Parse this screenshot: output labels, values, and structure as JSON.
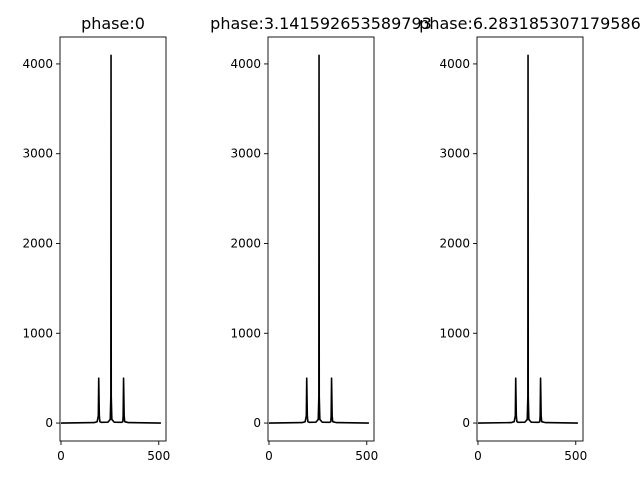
{
  "chart_data": [
    {
      "type": "line",
      "title": "phase:0",
      "xlabel": "",
      "ylabel": "",
      "xlim": [
        -5,
        537
      ],
      "ylim": [
        -200,
        4300
      ],
      "xticks": [
        0,
        500
      ],
      "yticks": [
        0,
        1000,
        2000,
        3000,
        4000
      ],
      "grid": false,
      "line_color": "#000000",
      "series": [
        {
          "x": [
            0,
            170,
            185,
            191,
            193,
            196,
            199,
            205,
            240,
            252,
            255,
            256,
            257,
            260,
            272,
            310,
            316,
            318,
            320,
            323,
            326,
            345,
            511
          ],
          "y": [
            0,
            5,
            15,
            80,
            500,
            80,
            15,
            8,
            10,
            40,
            300,
            4096,
            300,
            40,
            10,
            8,
            15,
            80,
            500,
            80,
            15,
            5,
            0
          ]
        }
      ]
    },
    {
      "type": "line",
      "title": "phase:3.141592653589793",
      "xlabel": "",
      "ylabel": "",
      "xlim": [
        -5,
        537
      ],
      "ylim": [
        -200,
        4300
      ],
      "xticks": [
        0,
        500
      ],
      "yticks": [
        0,
        1000,
        2000,
        3000,
        4000
      ],
      "grid": false,
      "line_color": "#000000",
      "series": [
        {
          "x": [
            0,
            170,
            185,
            191,
            193,
            196,
            199,
            205,
            240,
            252,
            255,
            256,
            257,
            260,
            272,
            310,
            316,
            318,
            320,
            323,
            326,
            345,
            511
          ],
          "y": [
            0,
            5,
            15,
            80,
            500,
            80,
            15,
            8,
            10,
            40,
            300,
            4096,
            300,
            40,
            10,
            8,
            15,
            80,
            500,
            80,
            15,
            5,
            0
          ]
        }
      ]
    },
    {
      "type": "line",
      "title": "phase:6.283185307179586",
      "xlabel": "",
      "ylabel": "",
      "xlim": [
        -5,
        537
      ],
      "ylim": [
        -200,
        4300
      ],
      "xticks": [
        0,
        500
      ],
      "yticks": [
        0,
        1000,
        2000,
        3000,
        4000
      ],
      "grid": false,
      "line_color": "#000000",
      "series": [
        {
          "x": [
            0,
            170,
            185,
            191,
            193,
            196,
            199,
            205,
            240,
            252,
            255,
            256,
            257,
            260,
            272,
            310,
            316,
            318,
            320,
            323,
            326,
            345,
            511
          ],
          "y": [
            0,
            5,
            15,
            80,
            500,
            80,
            15,
            8,
            10,
            40,
            300,
            4096,
            300,
            40,
            10,
            8,
            15,
            80,
            500,
            80,
            15,
            5,
            0
          ]
        }
      ]
    }
  ]
}
